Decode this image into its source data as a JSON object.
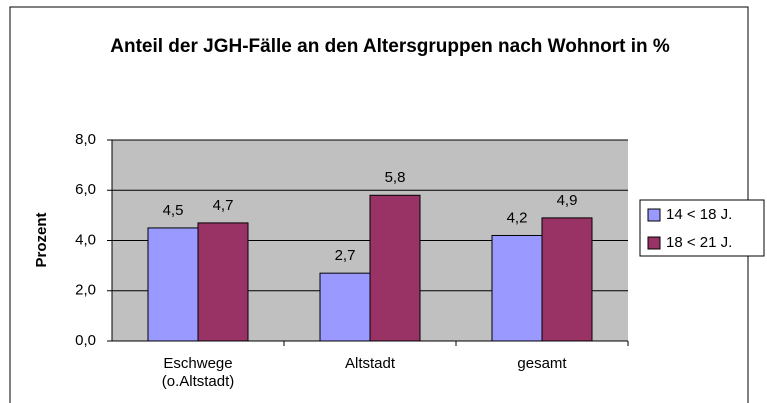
{
  "chart_data": {
    "type": "bar",
    "title": "Anteil der JGH-Fälle an den Altersgruppen nach Wohnort in %",
    "y_label": "Prozent",
    "categories": [
      "Eschwege (o.Altstadt)",
      "Altstadt",
      "gesamt"
    ],
    "series": [
      {
        "name": "14 < 18 J.",
        "color": "#9999ff",
        "values": [
          4.5,
          2.7,
          4.2
        ],
        "value_labels": [
          "4,5",
          "2,7",
          "4,2"
        ]
      },
      {
        "name": "18 < 21 J.",
        "color": "#993366",
        "values": [
          4.7,
          5.8,
          4.9
        ],
        "value_labels": [
          "4,7",
          "5,8",
          "4,9"
        ]
      }
    ],
    "ylim": [
      0,
      8
    ],
    "yticks": [
      {
        "value": 0,
        "label": "0,0"
      },
      {
        "value": 2,
        "label": "2,0"
      },
      {
        "value": 4,
        "label": "4,0"
      },
      {
        "value": 6,
        "label": "6,0"
      },
      {
        "value": 8,
        "label": "8,0"
      }
    ],
    "grid": true,
    "legend": "right"
  }
}
